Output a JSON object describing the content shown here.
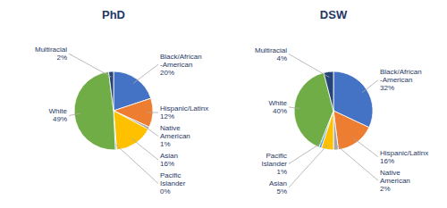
{
  "chart_data": [
    {
      "type": "pie",
      "title": "PhD",
      "categories": [
        "Black/African\n-American",
        "Hispanic/Latinx",
        "Native\nAmerican",
        "Asian",
        "Pacific\nIslander",
        "White",
        "Multiracial"
      ],
      "values": [
        20,
        12,
        1,
        16,
        0.5,
        49,
        2
      ],
      "value_labels": [
        "20%",
        "12%",
        "1%",
        "16%",
        "0%",
        "49%",
        "2%"
      ],
      "colors": [
        "#4472C4",
        "#ED7D31",
        "#A5A5A5",
        "#FFC000",
        "#5B9BD5",
        "#70AD47",
        "#264478"
      ],
      "data_labels": true
    },
    {
      "type": "pie",
      "title": "DSW",
      "categories": [
        "Black/African\n-American",
        "Hispanic/Latinx",
        "Native\nAmerican",
        "Asian",
        "Pacific\nIslander",
        "White",
        "Multiracial"
      ],
      "values": [
        32,
        16,
        2,
        5,
        1,
        40,
        4
      ],
      "value_labels": [
        "32%",
        "16%",
        "2%",
        "5%",
        "1%",
        "40%",
        "4%"
      ],
      "colors": [
        "#4472C4",
        "#ED7D31",
        "#A5A5A5",
        "#FFC000",
        "#5B9BD5",
        "#70AD47",
        "#264478"
      ],
      "data_labels": true
    }
  ]
}
